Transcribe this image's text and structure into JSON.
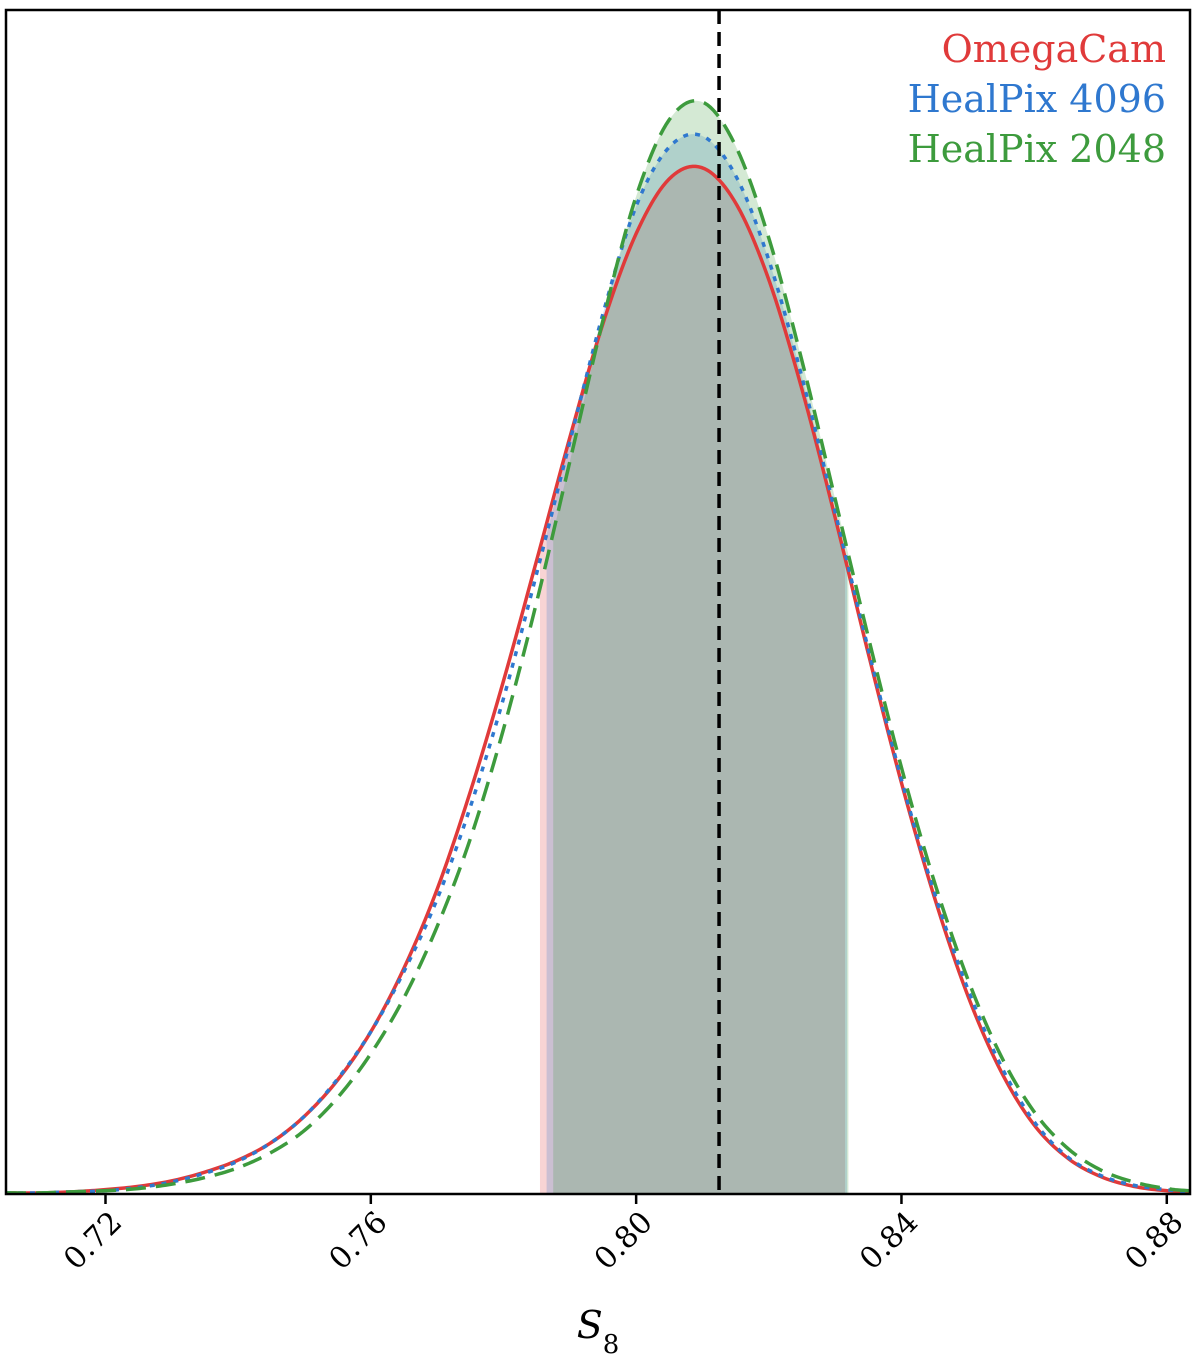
{
  "chart_data": {
    "type": "line",
    "title": "",
    "xlabel": "S",
    "xlabel_subscript": "8",
    "ylabel": "",
    "xlim": [
      0.705,
      0.8835
    ],
    "ylim": [
      0,
      1.08
    ],
    "xticks": [
      0.72,
      0.76,
      0.8,
      0.84,
      0.88
    ],
    "xtick_labels": [
      "0.72",
      "0.76",
      "0.80",
      "0.84",
      "0.88"
    ],
    "reference_line_x": 0.8125,
    "grid": false,
    "legend_position": "top-right",
    "series": [
      {
        "name": "OmegaCam",
        "color": "#e03a3a",
        "style": "solid",
        "x": [
          0.705,
          0.71,
          0.715,
          0.72,
          0.725,
          0.73,
          0.735,
          0.74,
          0.745,
          0.75,
          0.755,
          0.76,
          0.765,
          0.77,
          0.775,
          0.78,
          0.785,
          0.79,
          0.795,
          0.8,
          0.805,
          0.81,
          0.815,
          0.82,
          0.825,
          0.83,
          0.835,
          0.84,
          0.845,
          0.85,
          0.855,
          0.86,
          0.865,
          0.87,
          0.875,
          0.88,
          0.8835
        ],
        "y": [
          0.001,
          0.001,
          0.002,
          0.004,
          0.007,
          0.012,
          0.02,
          0.031,
          0.047,
          0.071,
          0.104,
          0.148,
          0.206,
          0.278,
          0.367,
          0.468,
          0.578,
          0.69,
          0.794,
          0.876,
          0.926,
          0.936,
          0.904,
          0.834,
          0.734,
          0.617,
          0.493,
          0.375,
          0.27,
          0.181,
          0.112,
          0.063,
          0.033,
          0.016,
          0.007,
          0.003,
          0.002
        ],
        "interval": [
          0.7855,
          0.8315
        ]
      },
      {
        "name": "HealPix 4096",
        "color": "#2f78cf",
        "style": "dotted",
        "x": [
          0.705,
          0.71,
          0.715,
          0.72,
          0.725,
          0.73,
          0.735,
          0.74,
          0.745,
          0.75,
          0.755,
          0.76,
          0.765,
          0.77,
          0.775,
          0.78,
          0.785,
          0.79,
          0.795,
          0.8,
          0.805,
          0.81,
          0.815,
          0.82,
          0.825,
          0.83,
          0.835,
          0.84,
          0.845,
          0.85,
          0.855,
          0.86,
          0.865,
          0.87,
          0.875,
          0.88,
          0.8835
        ],
        "y": [
          0.001,
          0.001,
          0.002,
          0.003,
          0.006,
          0.011,
          0.019,
          0.03,
          0.047,
          0.071,
          0.105,
          0.148,
          0.203,
          0.269,
          0.353,
          0.452,
          0.566,
          0.686,
          0.803,
          0.901,
          0.955,
          0.965,
          0.929,
          0.852,
          0.745,
          0.622,
          0.497,
          0.378,
          0.274,
          0.187,
          0.117,
          0.066,
          0.034,
          0.017,
          0.008,
          0.004,
          0.002
        ],
        "interval": [
          0.7865,
          0.8318
        ]
      },
      {
        "name": "HealPix 2048",
        "color": "#3d9b3d",
        "style": "dashed",
        "x": [
          0.705,
          0.71,
          0.715,
          0.72,
          0.725,
          0.73,
          0.735,
          0.74,
          0.745,
          0.75,
          0.755,
          0.76,
          0.765,
          0.77,
          0.775,
          0.78,
          0.785,
          0.79,
          0.795,
          0.8,
          0.805,
          0.81,
          0.815,
          0.82,
          0.825,
          0.83,
          0.835,
          0.84,
          0.845,
          0.85,
          0.855,
          0.86,
          0.865,
          0.87,
          0.875,
          0.88,
          0.8835
        ],
        "y": [
          0.001,
          0.001,
          0.002,
          0.003,
          0.005,
          0.009,
          0.015,
          0.024,
          0.038,
          0.058,
          0.088,
          0.128,
          0.179,
          0.244,
          0.324,
          0.424,
          0.54,
          0.668,
          0.797,
          0.91,
          0.98,
          0.996,
          0.956,
          0.872,
          0.76,
          0.634,
          0.508,
          0.389,
          0.284,
          0.196,
          0.126,
          0.075,
          0.042,
          0.022,
          0.011,
          0.005,
          0.003
        ],
        "interval": [
          0.7875,
          0.832
        ]
      }
    ]
  }
}
